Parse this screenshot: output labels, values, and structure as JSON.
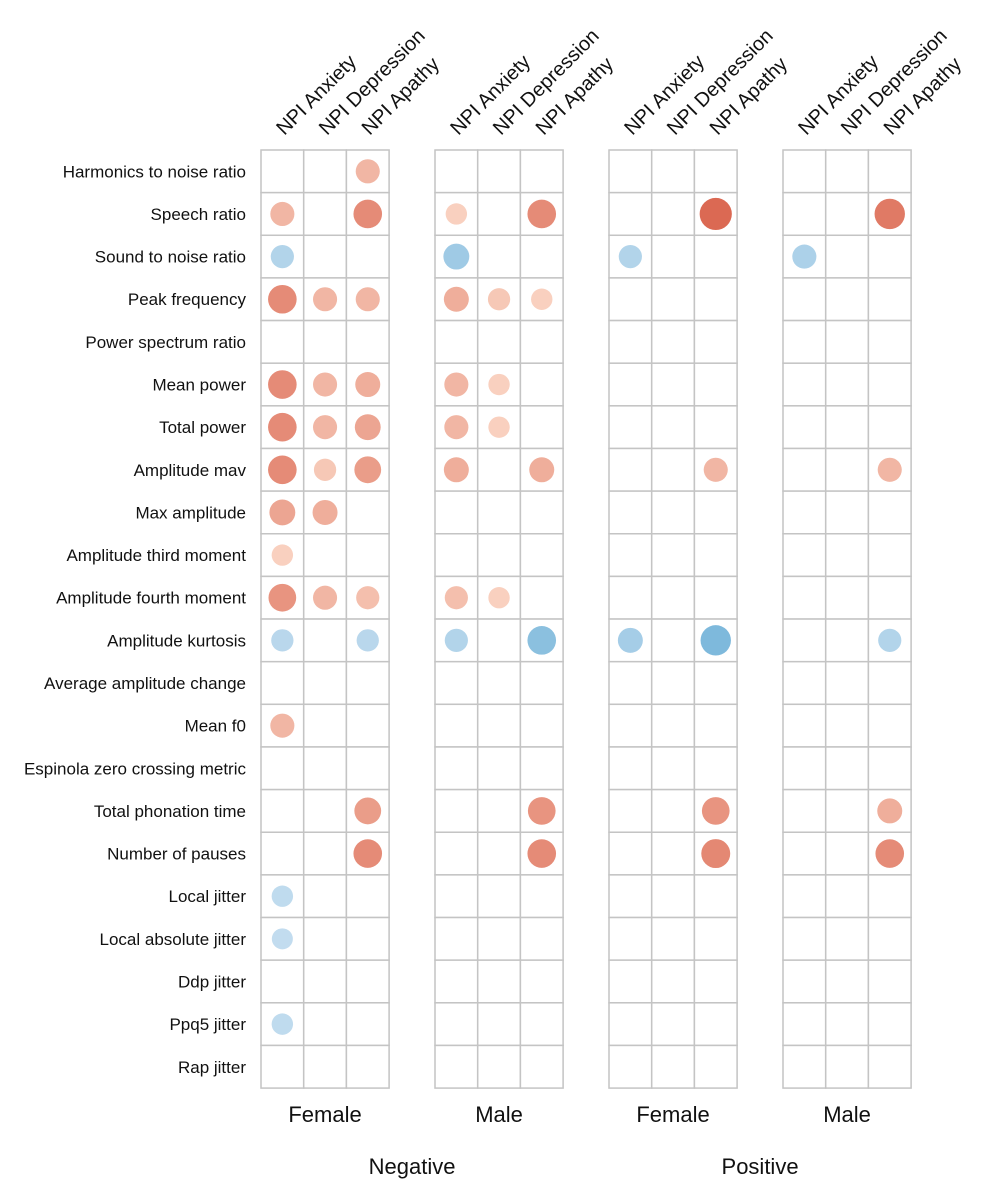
{
  "chart_data": {
    "type": "heatmap",
    "columns": [
      "NPI Anxiety",
      "NPI Depression",
      "NPI Apathy"
    ],
    "panels": [
      {
        "group": "Female",
        "super": "Negative"
      },
      {
        "group": "Male",
        "super": "Negative"
      },
      {
        "group": "Female",
        "super": "Positive"
      },
      {
        "group": "Male",
        "super": "Positive"
      }
    ],
    "super_groups": [
      "Negative",
      "Positive"
    ],
    "rows": [
      "Harmonics to noise ratio",
      "Speech ratio",
      "Sound to noise ratio",
      "Peak frequency",
      "Power spectrum ratio",
      "Mean power",
      "Total power",
      "Amplitude mav",
      "Max amplitude",
      "Amplitude third moment",
      "Amplitude fourth moment",
      "Amplitude kurtosis",
      "Average amplitude change",
      "Mean f0",
      "Espinola zero crossing metric",
      "Total phonation time",
      "Number of pauses",
      "Local jitter",
      "Local absolute jitter",
      "Ddp jitter",
      "Ppq5 jitter",
      "Rap jitter"
    ],
    "values": [
      [
        [
          null,
          null,
          0.45
        ],
        [
          null,
          null,
          null
        ],
        [
          null,
          null,
          null
        ],
        [
          null,
          null,
          null
        ]
      ],
      [
        [
          0.45,
          null,
          0.7
        ],
        [
          0.3,
          null,
          0.7
        ],
        [
          null,
          null,
          0.9
        ],
        [
          null,
          null,
          0.8
        ]
      ],
      [
        [
          -0.4,
          null,
          null
        ],
        [
          -0.55,
          null,
          null
        ],
        [
          -0.4,
          null,
          null
        ],
        [
          -0.45,
          null,
          null
        ]
      ],
      [
        [
          0.7,
          0.45,
          0.45
        ],
        [
          0.5,
          0.35,
          0.3
        ],
        [
          null,
          null,
          null
        ],
        [
          null,
          null,
          null
        ]
      ],
      [
        [
          null,
          null,
          null
        ],
        [
          null,
          null,
          null
        ],
        [
          null,
          null,
          null
        ],
        [
          null,
          null,
          null
        ]
      ],
      [
        [
          0.7,
          0.45,
          0.5
        ],
        [
          0.45,
          0.3,
          null
        ],
        [
          null,
          null,
          null
        ],
        [
          null,
          null,
          null
        ]
      ],
      [
        [
          0.7,
          0.45,
          0.55
        ],
        [
          0.45,
          0.3,
          null
        ],
        [
          null,
          null,
          null
        ],
        [
          null,
          null,
          null
        ]
      ],
      [
        [
          0.7,
          0.35,
          0.6
        ],
        [
          0.5,
          null,
          0.5
        ],
        [
          null,
          null,
          0.45
        ],
        [
          null,
          null,
          0.45
        ]
      ],
      [
        [
          0.55,
          0.5,
          null
        ],
        [
          null,
          null,
          null
        ],
        [
          null,
          null,
          null
        ],
        [
          null,
          null,
          null
        ]
      ],
      [
        [
          0.3,
          null,
          null
        ],
        [
          null,
          null,
          null
        ],
        [
          null,
          null,
          null
        ],
        [
          null,
          null,
          null
        ]
      ],
      [
        [
          0.65,
          0.45,
          0.4
        ],
        [
          0.4,
          0.3,
          null
        ],
        [
          null,
          null,
          null
        ],
        [
          null,
          null,
          null
        ]
      ],
      [
        [
          -0.35,
          null,
          -0.35
        ],
        [
          -0.4,
          null,
          -0.7
        ],
        [
          -0.5,
          null,
          -0.8
        ],
        [
          null,
          null,
          -0.4
        ]
      ],
      [
        [
          null,
          null,
          null
        ],
        [
          null,
          null,
          null
        ],
        [
          null,
          null,
          null
        ],
        [
          null,
          null,
          null
        ]
      ],
      [
        [
          0.45,
          null,
          null
        ],
        [
          null,
          null,
          null
        ],
        [
          null,
          null,
          null
        ],
        [
          null,
          null,
          null
        ]
      ],
      [
        [
          null,
          null,
          null
        ],
        [
          null,
          null,
          null
        ],
        [
          null,
          null,
          null
        ],
        [
          null,
          null,
          null
        ]
      ],
      [
        [
          null,
          null,
          0.6
        ],
        [
          null,
          null,
          0.65
        ],
        [
          null,
          null,
          0.65
        ],
        [
          null,
          null,
          0.5
        ]
      ],
      [
        [
          null,
          null,
          0.7
        ],
        [
          null,
          null,
          0.7
        ],
        [
          null,
          null,
          0.72
        ],
        [
          null,
          null,
          0.7
        ]
      ],
      [
        [
          -0.3,
          null,
          null
        ],
        [
          null,
          null,
          null
        ],
        [
          null,
          null,
          null
        ],
        [
          null,
          null,
          null
        ]
      ],
      [
        [
          -0.28,
          null,
          null
        ],
        [
          null,
          null,
          null
        ],
        [
          null,
          null,
          null
        ],
        [
          null,
          null,
          null
        ]
      ],
      [
        [
          null,
          null,
          null
        ],
        [
          null,
          null,
          null
        ],
        [
          null,
          null,
          null
        ],
        [
          null,
          null,
          null
        ]
      ],
      [
        [
          -0.3,
          null,
          null
        ],
        [
          null,
          null,
          null
        ],
        [
          null,
          null,
          null
        ],
        [
          null,
          null,
          null
        ]
      ],
      [
        [
          null,
          null,
          null
        ],
        [
          null,
          null,
          null
        ],
        [
          null,
          null,
          null
        ],
        [
          null,
          null,
          null
        ]
      ]
    ],
    "colors": {
      "positive_light": "#fbd9c8",
      "positive_dark": "#d9604a",
      "negative_light": "#c6def0",
      "negative_dark": "#6aafd6",
      "grid": "#c4c4c4"
    },
    "grid": true,
    "legend": "none"
  }
}
